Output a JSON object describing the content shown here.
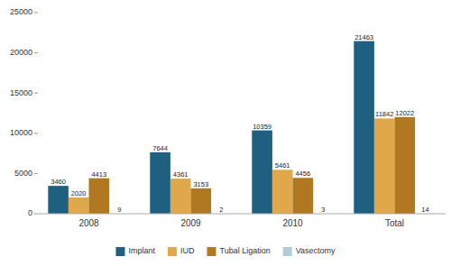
{
  "chart_data": {
    "type": "bar",
    "categories": [
      "2008",
      "2009",
      "2010",
      "Total"
    ],
    "series": [
      {
        "name": "Implant",
        "color": "#1f6080",
        "values": [
          3460,
          7644,
          10359,
          21463
        ]
      },
      {
        "name": "IUD",
        "color": "#e0a84a",
        "values": [
          2020,
          4361,
          5461,
          11842
        ]
      },
      {
        "name": "Tubal Ligation",
        "color": "#b07820",
        "values": [
          4413,
          3153,
          4456,
          12022
        ]
      },
      {
        "name": "Vasectomy",
        "color": "#b0ccd8",
        "values": [
          9,
          2,
          3,
          14
        ]
      }
    ],
    "ylim": [
      0,
      25000
    ],
    "yticks": [
      0,
      5000,
      10000,
      15000,
      20000,
      25000
    ],
    "grid": false,
    "legend": "bottom",
    "data_labels": true
  }
}
